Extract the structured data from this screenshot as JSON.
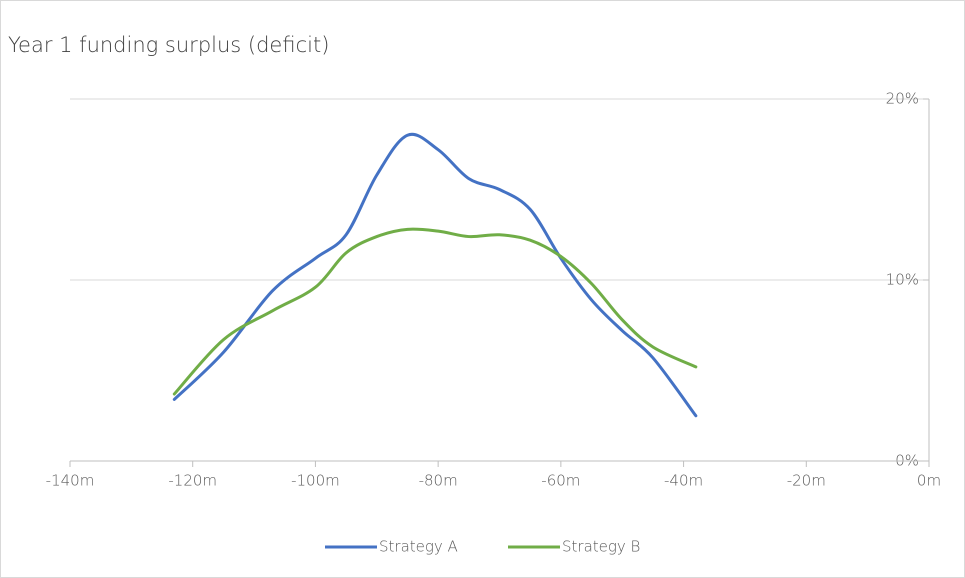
{
  "chart_data": {
    "type": "line",
    "title": "Year 1 funding surplus (deficit)",
    "x": [
      -123,
      -115,
      -107,
      -100,
      -95,
      -90,
      -85,
      -80,
      -75,
      -70,
      -65,
      -60,
      -55,
      -50,
      -45,
      -38
    ],
    "series": [
      {
        "name": "Strategy A",
        "color": "#4472c4",
        "values": [
          3.4,
          6.0,
          9.4,
          11.2,
          12.5,
          15.8,
          18.0,
          17.2,
          15.6,
          15.0,
          13.9,
          11.2,
          8.9,
          7.2,
          5.7,
          2.5
        ]
      },
      {
        "name": "Strategy B",
        "color": "#70ad47",
        "values": [
          3.7,
          6.7,
          8.3,
          9.6,
          11.5,
          12.4,
          12.8,
          12.7,
          12.4,
          12.5,
          12.2,
          11.3,
          9.8,
          7.8,
          6.3,
          5.2
        ]
      }
    ],
    "xlim": [
      -140,
      0
    ],
    "xticks": [
      {
        "value": -140,
        "label": "-140m"
      },
      {
        "value": -120,
        "label": "-120m"
      },
      {
        "value": -100,
        "label": "-100m"
      },
      {
        "value": -80,
        "label": "-80m"
      },
      {
        "value": -60,
        "label": "-60m"
      },
      {
        "value": -40,
        "label": "-40m"
      },
      {
        "value": -20,
        "label": "-20m"
      },
      {
        "value": 0,
        "label": "0m"
      }
    ],
    "ylim": [
      0,
      20
    ],
    "yticks": [
      {
        "value": 0,
        "label": "0%"
      },
      {
        "value": 10,
        "label": "10%"
      },
      {
        "value": 20,
        "label": "20%"
      }
    ],
    "grid": true,
    "smooth": true,
    "legend": "bottom"
  }
}
